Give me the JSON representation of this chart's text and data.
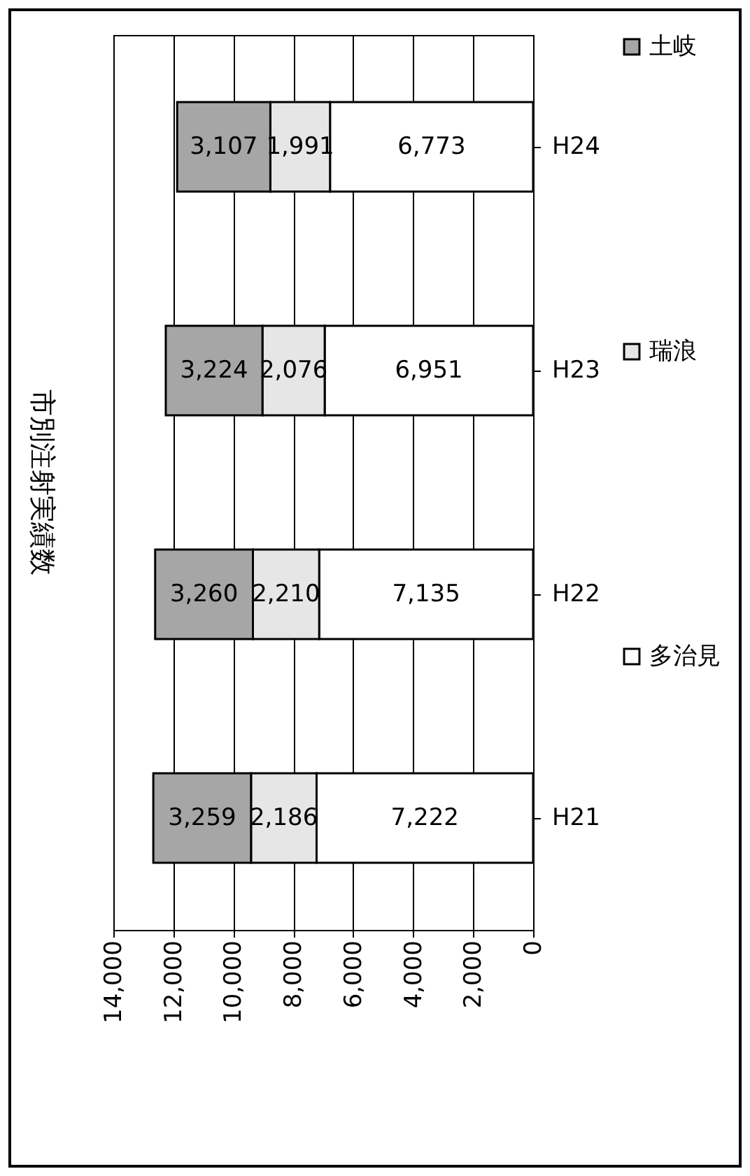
{
  "chart_data": {
    "type": "bar",
    "orientation": "horizontal",
    "title": "市別注射実績数",
    "stacked": true,
    "categories": [
      "H24",
      "H23",
      "H22",
      "H21"
    ],
    "series": [
      {
        "name": "多治見",
        "color": "#ffffff",
        "values": [
          6773,
          6951,
          7135,
          7222
        ],
        "value_labels": [
          "6,773",
          "6,951",
          "7,135",
          "7,222"
        ]
      },
      {
        "name": "瑞浪",
        "color": "#e6e6e6",
        "values": [
          1991,
          2076,
          2210,
          2186
        ],
        "value_labels": [
          "1,991",
          "2,076",
          "2,210",
          "2,186"
        ]
      },
      {
        "name": "土岐",
        "color": "#a6a6a6",
        "values": [
          3107,
          3224,
          3260,
          3259
        ],
        "value_labels": [
          "3,107",
          "3,224",
          "3,260",
          "3,259"
        ]
      }
    ],
    "xlim": [
      14000,
      0
    ],
    "xticks": [
      0,
      {
        "value": 2000,
        "label": "2,000"
      },
      {
        "value": 4000,
        "label": "4,000"
      },
      {
        "value": 6000,
        "label": "6,000"
      },
      {
        "value": 8000,
        "label": "8,000"
      },
      {
        "value": 10000,
        "label": "10,000"
      },
      {
        "value": 12000,
        "label": "12,000"
      },
      {
        "value": 14000,
        "label": "14,000"
      }
    ],
    "grid": "x",
    "legend": "right"
  }
}
